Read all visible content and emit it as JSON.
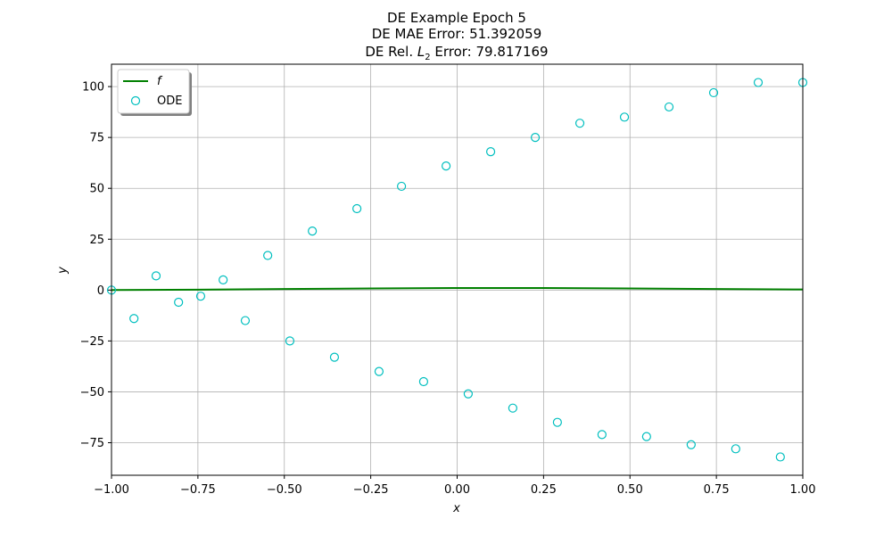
{
  "chart_data": {
    "type": "scatter",
    "title_lines": [
      "DE Example Epoch 5",
      "DE MAE Error: 51.392059"
    ],
    "title_line3_prefix": "DE Rel. ",
    "title_line3_math": "L",
    "title_line3_sub": "2",
    "title_line3_suffix": " Error: 79.817169",
    "xlabel": "x",
    "ylabel": "y",
    "xlim": [
      -1.0,
      1.0
    ],
    "ylim": [
      -91,
      111
    ],
    "grid": true,
    "legend_position": "top-left",
    "x_ticks": [
      -1.0,
      -0.75,
      -0.5,
      -0.25,
      0.0,
      0.25,
      0.5,
      0.75,
      1.0
    ],
    "x_tick_labels": [
      "−1.00",
      "−0.75",
      "−0.50",
      "−0.25",
      "0.00",
      "0.25",
      "0.50",
      "0.75",
      "1.00"
    ],
    "y_ticks": [
      -75,
      -50,
      -25,
      0,
      25,
      50,
      75,
      100
    ],
    "y_tick_labels": [
      "−75",
      "−50",
      "−25",
      "0",
      "25",
      "50",
      "75",
      "100"
    ],
    "series": [
      {
        "name": "f",
        "kind": "line",
        "color": "#008000",
        "x": [
          -1.0,
          -0.75,
          -0.5,
          -0.25,
          0.0,
          0.25,
          0.5,
          0.75,
          1.0
        ],
        "y": [
          0.0,
          0.2,
          0.5,
          0.8,
          1.0,
          1.0,
          0.8,
          0.5,
          0.3
        ]
      },
      {
        "name": "ODE",
        "kind": "scatter",
        "color": "#00bfbf",
        "x": [
          -1.0,
          -0.935,
          -0.871,
          -0.806,
          -0.742,
          -0.677,
          -0.613,
          -0.548,
          -0.484,
          -0.419,
          -0.355,
          -0.29,
          -0.226,
          -0.161,
          -0.097,
          -0.032,
          0.032,
          0.097,
          0.161,
          0.226,
          0.29,
          0.355,
          0.419,
          0.484,
          0.548,
          0.613,
          0.677,
          0.742,
          0.806,
          0.871,
          0.935,
          1.0
        ],
        "y": [
          0,
          -14,
          7,
          -6,
          -3,
          5,
          -15,
          17,
          -25,
          29,
          -33,
          40,
          -40,
          51,
          -45,
          61,
          -51,
          68,
          -58,
          75,
          -65,
          82,
          -71,
          85,
          -72,
          90,
          -76,
          97,
          -78,
          102,
          -82,
          102
        ]
      }
    ]
  }
}
